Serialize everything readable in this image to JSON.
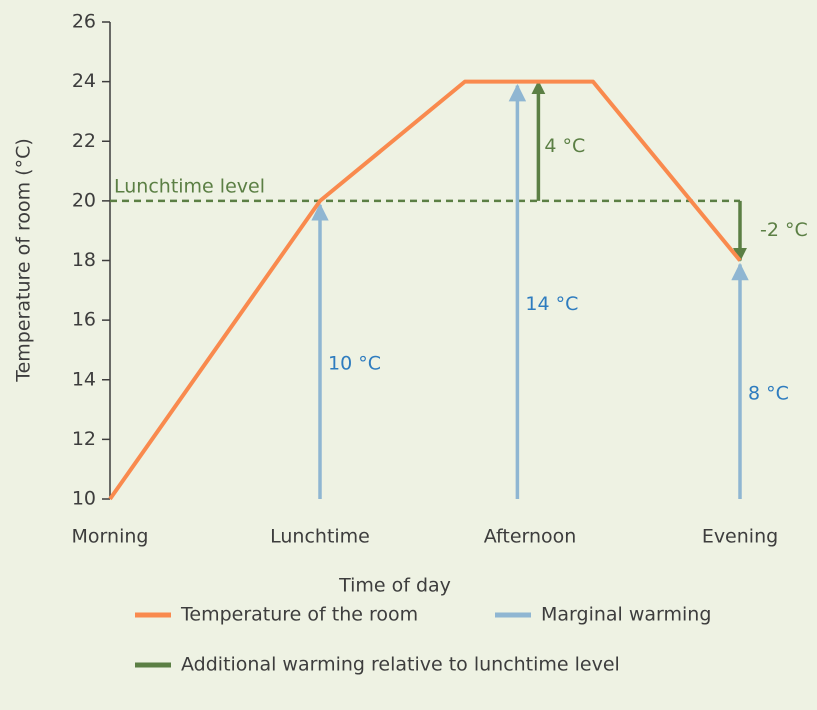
{
  "chart_data": {
    "type": "line",
    "x_label": "Time of day",
    "y_label": "Temperature of room (°C)",
    "xlim": [
      0,
      3
    ],
    "xticks": [
      {
        "value": 0,
        "label": "Morning"
      },
      {
        "value": 1,
        "label": "Lunchtime"
      },
      {
        "value": 2,
        "label": "Afternoon"
      },
      {
        "value": 3,
        "label": "Evening"
      }
    ],
    "ylim": [
      10,
      26
    ],
    "yticks": [
      10,
      12,
      14,
      16,
      18,
      20,
      22,
      24,
      26
    ],
    "reference_line": {
      "value": 20,
      "label": "Lunchtime level",
      "color": "#5b7f44"
    },
    "series": [
      {
        "name": "Temperature of the room",
        "color": "#f98a4e",
        "x": [
          0,
          1,
          1.69,
          2.3,
          3
        ],
        "values": [
          10,
          20,
          24,
          24,
          18
        ]
      },
      {
        "name": "Marginal warming",
        "color": "#8fb6d2",
        "label_color": "#2e7cbf",
        "x": [
          1,
          1.94,
          3
        ],
        "values": [
          10,
          14,
          8
        ],
        "value_labels": [
          "10 °C",
          "14 °C",
          "8 °C"
        ]
      },
      {
        "name": "Additional warming relative to lunchtime level",
        "color": "#5b7f44",
        "label_color": "#5b7f44",
        "x": [
          2.04,
          3
        ],
        "values": [
          4,
          -2
        ],
        "value_labels": [
          "4 °C",
          "-2 °C"
        ]
      }
    ]
  }
}
